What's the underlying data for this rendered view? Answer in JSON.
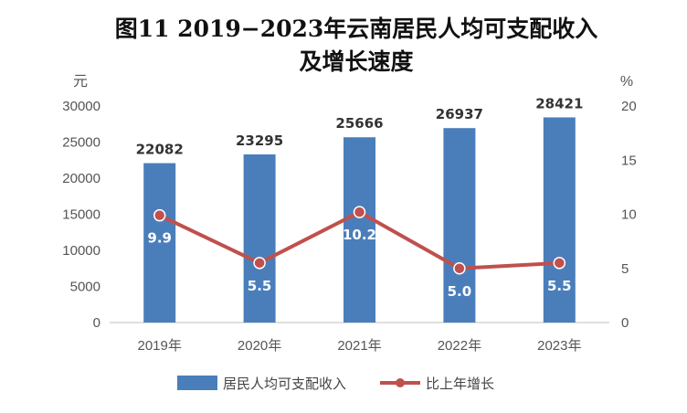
{
  "chart_data": {
    "type": "bar",
    "title_line1": "图11  2019−2023年云南居民人均可支配收入",
    "title_line2": "及增长速度",
    "categories": [
      "2019年",
      "2020年",
      "2021年",
      "2022年",
      "2023年"
    ],
    "series": [
      {
        "name": "居民人均可支配收入",
        "type": "bar",
        "axis": "left",
        "values": [
          22082,
          23295,
          25666,
          26937,
          28421
        ],
        "color": "#4a7ebb"
      },
      {
        "name": "比上年增长",
        "type": "line",
        "axis": "right",
        "values": [
          9.9,
          5.5,
          10.2,
          5.0,
          5.5
        ],
        "value_labels": [
          "9.9",
          "5.5",
          "10.2",
          "5.0",
          "5.5"
        ],
        "color": "#c0504d"
      }
    ],
    "y_left": {
      "unit": "元",
      "min": 0,
      "max": 30000,
      "ticks": [
        0,
        5000,
        10000,
        15000,
        20000,
        25000,
        30000
      ]
    },
    "y_right": {
      "unit": "%",
      "min": 0,
      "max": 20,
      "ticks": [
        0,
        5,
        10,
        15,
        20
      ]
    },
    "grid": false,
    "legend_position": "bottom"
  }
}
